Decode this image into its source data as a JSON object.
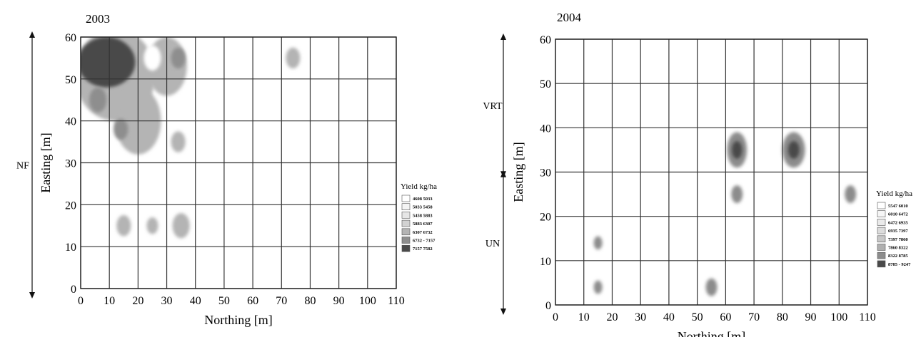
{
  "chart_data": [
    {
      "type": "heatmap",
      "title": "2003",
      "xlabel": "Northing [m]",
      "ylabel": "Easting [m]",
      "xlim": [
        0,
        110
      ],
      "ylim": [
        0,
        60
      ],
      "x_ticks": [
        0,
        10,
        20,
        30,
        40,
        50,
        60,
        70,
        80,
        90,
        100,
        110
      ],
      "y_ticks": [
        0,
        10,
        20,
        30,
        40,
        50,
        60
      ],
      "grid": true,
      "legend_title": "Yield kg/ha",
      "legend_position": "right",
      "legend": [
        {
          "label": "4608 5033",
          "color": "#ffffff"
        },
        {
          "label": "5033 5458",
          "color": "#f4f4f4"
        },
        {
          "label": "5458 5883",
          "color": "#e6e6e6"
        },
        {
          "label": "5883 6307",
          "color": "#d2d2d2"
        },
        {
          "label": "6307 6732",
          "color": "#b4b4b4"
        },
        {
          "label": "6732 - 7157",
          "color": "#8e8e8e"
        },
        {
          "label": "7157 7582",
          "color": "#4a4a4a"
        }
      ],
      "side_annotations": [
        {
          "label": "NF",
          "y_range": [
            0,
            60
          ]
        }
      ],
      "zones": [
        {
          "x": 12,
          "y": 51,
          "rx": 14,
          "ry": 11,
          "level": 4
        },
        {
          "x": 20,
          "y": 40,
          "rx": 8,
          "ry": 8,
          "level": 4
        },
        {
          "x": 30,
          "y": 53,
          "rx": 7,
          "ry": 7,
          "level": 4
        },
        {
          "x": 9,
          "y": 54,
          "rx": 10,
          "ry": 6,
          "level": 6
        },
        {
          "x": 6,
          "y": 45,
          "rx": 3,
          "ry": 3,
          "level": 5
        },
        {
          "x": 14,
          "y": 38,
          "rx": 2.5,
          "ry": 2.5,
          "level": 5
        },
        {
          "x": 34,
          "y": 55,
          "rx": 2.5,
          "ry": 2.5,
          "level": 5
        },
        {
          "x": 25,
          "y": 55,
          "rx": 3,
          "ry": 3,
          "level": 0
        },
        {
          "x": 34,
          "y": 35,
          "rx": 2.5,
          "ry": 2.5,
          "level": 4
        },
        {
          "x": 74,
          "y": 55,
          "rx": 2.5,
          "ry": 2.5,
          "level": 4
        },
        {
          "x": 15,
          "y": 15,
          "rx": 2.5,
          "ry": 2.5,
          "level": 4
        },
        {
          "x": 25,
          "y": 15,
          "rx": 2,
          "ry": 2,
          "level": 4
        },
        {
          "x": 35,
          "y": 15,
          "rx": 3,
          "ry": 3,
          "level": 4
        }
      ]
    },
    {
      "type": "heatmap",
      "title": "2004",
      "xlabel": "Northing [m]",
      "ylabel": "Easting [m]",
      "xlim": [
        0,
        110
      ],
      "ylim": [
        0,
        60
      ],
      "x_ticks": [
        0,
        10,
        20,
        30,
        40,
        50,
        60,
        70,
        80,
        90,
        100,
        110
      ],
      "y_ticks": [
        0,
        10,
        20,
        30,
        40,
        50,
        60
      ],
      "grid": true,
      "legend_title": "Yield kg/ha",
      "legend_position": "right",
      "legend": [
        {
          "label": "5547 6010",
          "color": "#ffffff"
        },
        {
          "label": "6010 6472",
          "color": "#f6f6f6"
        },
        {
          "label": "6472 6935",
          "color": "#eaeaea"
        },
        {
          "label": "6935 7397",
          "color": "#dcdcdc"
        },
        {
          "label": "7397 7860",
          "color": "#c8c8c8"
        },
        {
          "label": "7860 8322",
          "color": "#b0b0b0"
        },
        {
          "label": "8322 8785",
          "color": "#8c8c8c"
        },
        {
          "label": "8785 - 9247",
          "color": "#4a4a4a"
        }
      ],
      "side_annotations": [
        {
          "label": "VRT",
          "y_range": [
            31,
            60
          ]
        },
        {
          "label": "UN",
          "y_range": [
            0,
            29
          ]
        }
      ],
      "zones": [
        {
          "x": 64,
          "y": 35,
          "rx": 3.5,
          "ry": 4,
          "level": 6
        },
        {
          "x": 64,
          "y": 35,
          "rx": 1.8,
          "ry": 2,
          "level": 7
        },
        {
          "x": 84,
          "y": 35,
          "rx": 4,
          "ry": 4,
          "level": 6
        },
        {
          "x": 84,
          "y": 35,
          "rx": 2,
          "ry": 2,
          "level": 7
        },
        {
          "x": 64,
          "y": 25,
          "rx": 2,
          "ry": 2,
          "level": 6
        },
        {
          "x": 104,
          "y": 25,
          "rx": 2,
          "ry": 2,
          "level": 6
        },
        {
          "x": 15,
          "y": 14,
          "rx": 1.5,
          "ry": 1.5,
          "level": 6
        },
        {
          "x": 15,
          "y": 4,
          "rx": 1.5,
          "ry": 1.5,
          "level": 6
        },
        {
          "x": 55,
          "y": 4,
          "rx": 2,
          "ry": 2,
          "level": 6
        }
      ]
    }
  ]
}
